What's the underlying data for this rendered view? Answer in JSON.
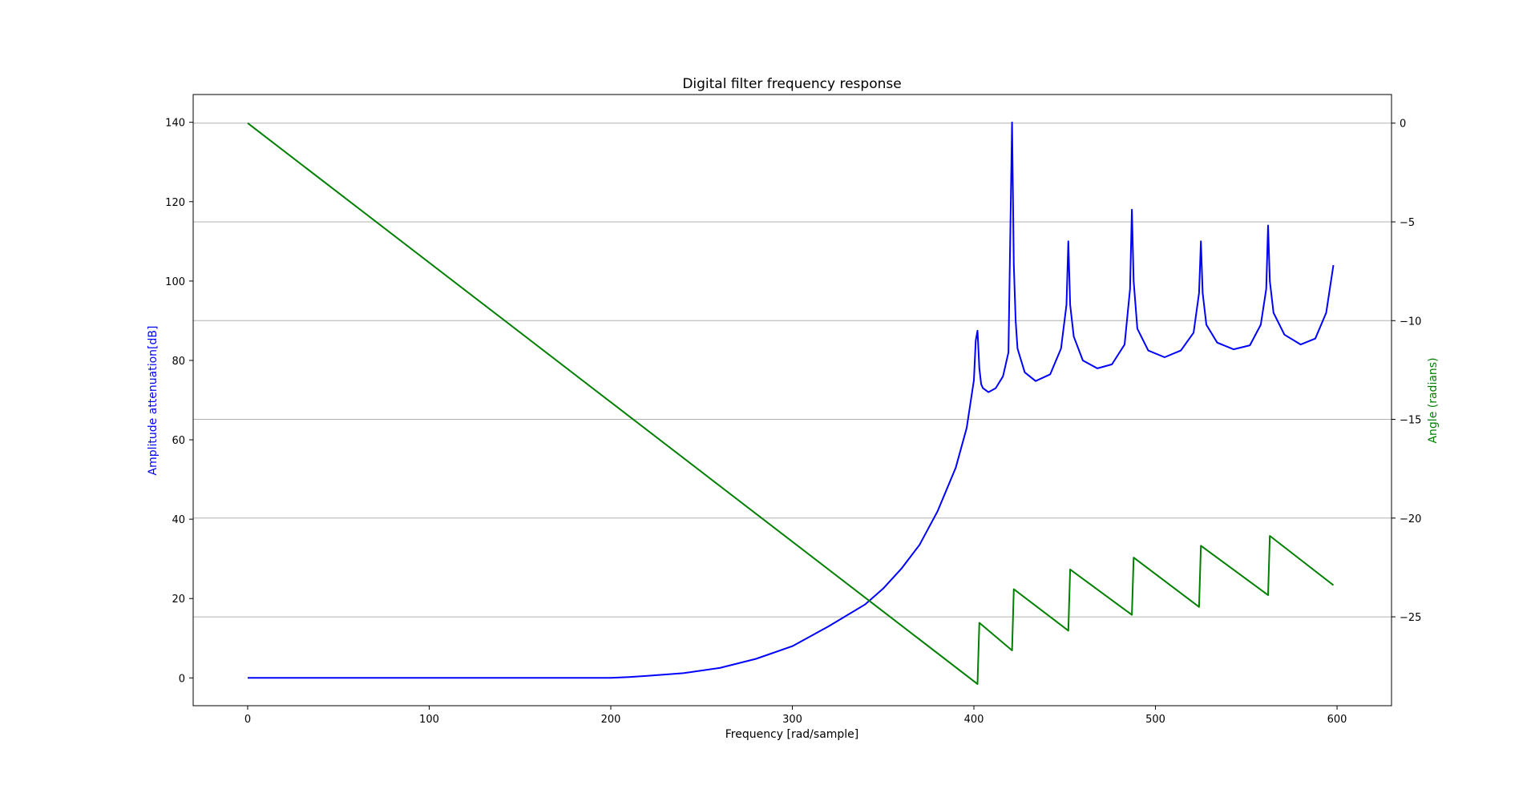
{
  "chart_data": {
    "type": "line",
    "title": "Digital filter frequency response",
    "xlabel": "Frequency [rad/sample]",
    "ylabel_left": "Amplitude attenuation[dB]",
    "ylabel_right": "Angle (radians)",
    "xlim": [
      -30,
      630
    ],
    "ylim_left": [
      -7,
      147
    ],
    "ylim_right": [
      -29.5,
      1.45
    ],
    "xticks": [
      0,
      100,
      200,
      300,
      400,
      500,
      600
    ],
    "yticks_left": [
      0,
      20,
      40,
      60,
      80,
      100,
      120,
      140
    ],
    "yticks_right": [
      0,
      -5,
      -10,
      -15,
      -20,
      -25
    ],
    "grid": "right-axis horizontal",
    "series": [
      {
        "axis": "left",
        "color": "#0000ff",
        "x": [
          0,
          100,
          200,
          210,
          220,
          240,
          260,
          280,
          300,
          320,
          340,
          350,
          360,
          370,
          380,
          390,
          396,
          400,
          401,
          402,
          403,
          404,
          405,
          408,
          412,
          416,
          419,
          421,
          422,
          423,
          424,
          428,
          434,
          442,
          448,
          451,
          452,
          453,
          455,
          460,
          468,
          476,
          483,
          486,
          487,
          488,
          490,
          496,
          505,
          514,
          521,
          524,
          525,
          526,
          528,
          534,
          543,
          552,
          558,
          561,
          562,
          563,
          565,
          571,
          580,
          588,
          594,
          598
        ],
        "values": [
          0,
          0,
          0,
          0.2,
          0.5,
          1.2,
          2.5,
          4.8,
          8,
          13,
          18.5,
          22.5,
          27.5,
          33.5,
          42,
          53,
          63,
          75,
          85,
          87.5,
          78,
          74,
          73,
          72,
          73,
          76,
          82,
          140,
          104,
          90,
          83,
          77,
          74.8,
          76.5,
          83,
          94,
          110,
          94,
          86,
          80,
          78,
          79,
          84,
          98,
          118,
          100,
          88,
          82.5,
          80.8,
          82.5,
          87,
          97,
          110,
          97,
          89,
          84.5,
          82.8,
          83.8,
          89,
          98,
          114,
          100,
          92,
          86.5,
          84,
          85.5,
          92,
          104
        ]
      },
      {
        "axis": "right",
        "color": "#008000",
        "x": [
          0,
          402,
          403,
          421,
          422,
          452,
          453,
          487,
          488,
          524,
          525,
          562,
          563,
          598
        ],
        "values": [
          0,
          -28.4,
          -25.3,
          -26.7,
          -23.6,
          -25.7,
          -22.6,
          -24.9,
          -22.0,
          -24.5,
          -21.4,
          -23.9,
          -20.9,
          -23.4
        ]
      }
    ]
  }
}
